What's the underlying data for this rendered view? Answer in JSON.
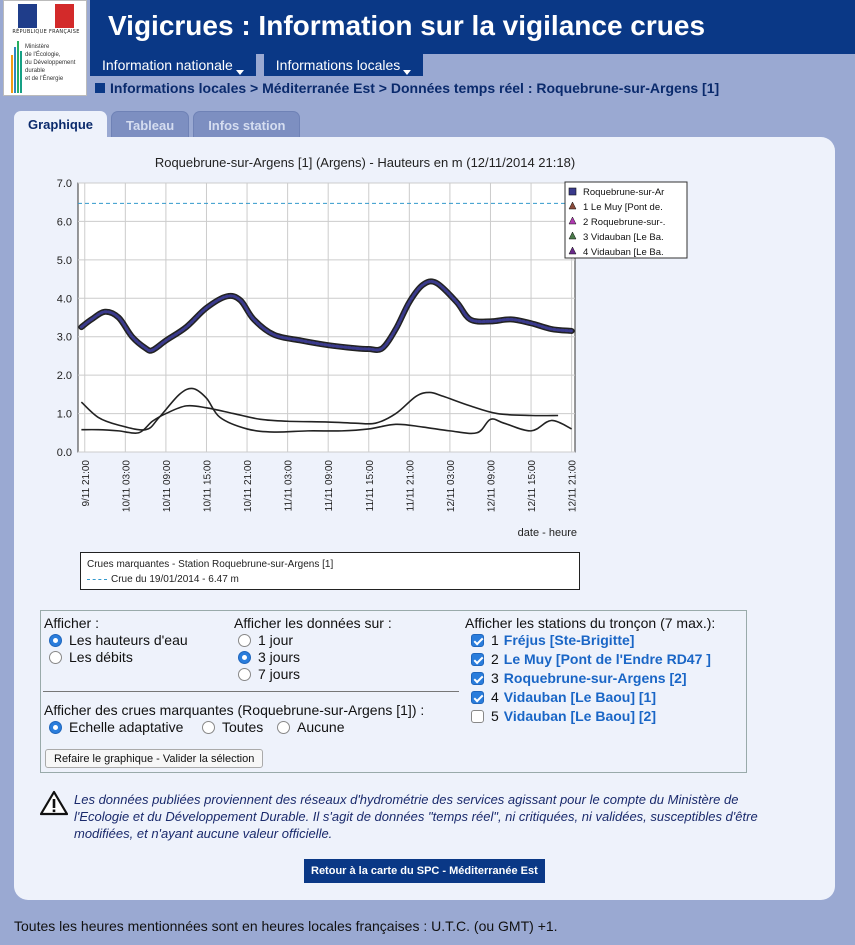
{
  "logo": {
    "republique": "RÉPUBLIQUE FRANÇAISE",
    "ministere_lines": [
      "Ministère",
      "de l'Écologie,",
      "du Développement",
      "durable",
      "et de l'Énergie"
    ]
  },
  "header": {
    "title": "Vigicrues : Information sur la vigilance crues"
  },
  "nav": {
    "items": [
      {
        "label": "Information nationale"
      },
      {
        "label": "Informations locales"
      }
    ]
  },
  "breadcrumb": "Informations locales > Méditerranée Est > Données temps réel : Roquebrune-sur-Argens [1]",
  "tabs": [
    {
      "label": "Graphique",
      "active": true
    },
    {
      "label": "Tableau",
      "active": false
    },
    {
      "label": "Infos station",
      "active": false
    }
  ],
  "chart_data": {
    "type": "line",
    "title": "Roquebrune-sur-Argens [1] (Argens) - Hauteurs en m (12/11/2014 21:18)",
    "xlabel": "date - heure",
    "ylabel": "",
    "ylim": [
      0,
      7
    ],
    "yticks": [
      "0.0",
      "1.0",
      "2.0",
      "3.0",
      "4.0",
      "5.0",
      "6.0",
      "7.0"
    ],
    "xticks": [
      "9/11 21:00",
      "10/11 03:00",
      "10/11 09:00",
      "10/11 15:00",
      "10/11 21:00",
      "11/11 03:00",
      "11/11 09:00",
      "11/11 15:00",
      "11/11 21:00",
      "12/11 03:00",
      "12/11 09:00",
      "12/11 15:00",
      "12/11 21:00"
    ],
    "x_hours_from_first_tick": [
      0,
      6,
      12,
      18,
      24,
      30,
      36,
      42,
      48,
      54,
      60,
      66,
      72
    ],
    "grid": true,
    "legend_position": "top-right",
    "threshold": {
      "label": "Crue du 19/01/2014 - 6.47 m",
      "value": 6.47,
      "color": "#3399cc"
    },
    "series": [
      {
        "name": "Roquebrune-sur-Ar",
        "color": "#3a3a8c",
        "marker": true,
        "points": [
          [
            -0.5,
            3.25
          ],
          [
            1,
            3.45
          ],
          [
            3,
            3.65
          ],
          [
            5,
            3.5
          ],
          [
            7,
            3.0
          ],
          [
            9,
            2.7
          ],
          [
            10,
            2.65
          ],
          [
            12,
            2.9
          ],
          [
            15,
            3.25
          ],
          [
            18,
            3.75
          ],
          [
            21,
            4.05
          ],
          [
            23,
            3.95
          ],
          [
            25,
            3.45
          ],
          [
            28,
            3.05
          ],
          [
            32,
            2.9
          ],
          [
            36,
            2.78
          ],
          [
            40,
            2.7
          ],
          [
            42,
            2.68
          ],
          [
            44,
            2.7
          ],
          [
            46,
            3.2
          ],
          [
            48,
            3.9
          ],
          [
            50,
            4.35
          ],
          [
            52,
            4.4
          ],
          [
            55,
            3.9
          ],
          [
            57,
            3.45
          ],
          [
            60,
            3.4
          ],
          [
            63,
            3.45
          ],
          [
            66,
            3.35
          ],
          [
            69,
            3.2
          ],
          [
            72,
            3.15
          ]
        ]
      },
      {
        "name": "1 Le Muy [Pont de.",
        "color": "#222222",
        "marker": false,
        "points": [
          [
            -0.5,
            0.58
          ],
          [
            2,
            0.58
          ],
          [
            5,
            0.55
          ],
          [
            8,
            0.5
          ],
          [
            10,
            0.8
          ],
          [
            12,
            1.0
          ],
          [
            15,
            1.2
          ],
          [
            18,
            1.15
          ],
          [
            22,
            1.0
          ],
          [
            26,
            0.85
          ],
          [
            30,
            0.8
          ],
          [
            36,
            0.78
          ],
          [
            40,
            0.75
          ],
          [
            43,
            0.75
          ],
          [
            46,
            1.0
          ],
          [
            49,
            1.45
          ],
          [
            51,
            1.55
          ],
          [
            53,
            1.45
          ],
          [
            57,
            1.2
          ],
          [
            61,
            1.0
          ],
          [
            66,
            0.95
          ],
          [
            70,
            0.95
          ]
        ]
      },
      {
        "name": "2 Roquebrune-sur-.",
        "color": "#222222",
        "marker": false,
        "points": [
          [
            -0.5,
            1.3
          ],
          [
            2,
            0.9
          ],
          [
            5,
            0.7
          ],
          [
            9,
            0.58
          ],
          [
            11,
            0.9
          ],
          [
            14,
            1.5
          ],
          [
            16,
            1.65
          ],
          [
            18,
            1.4
          ],
          [
            20,
            0.9
          ],
          [
            24,
            0.6
          ],
          [
            28,
            0.52
          ],
          [
            33,
            0.55
          ],
          [
            38,
            0.55
          ],
          [
            42,
            0.6
          ],
          [
            46,
            0.72
          ],
          [
            50,
            0.65
          ],
          [
            54,
            0.55
          ],
          [
            58,
            0.5
          ],
          [
            60,
            0.85
          ],
          [
            62,
            0.75
          ],
          [
            66,
            0.55
          ],
          [
            69,
            0.82
          ],
          [
            72,
            0.6
          ]
        ]
      },
      {
        "name": "3 Vidauban [Le Ba.",
        "color": "#222222",
        "marker": false,
        "points": []
      },
      {
        "name": "4 Vidauban [Le Ba.",
        "color": "#222222",
        "marker": false,
        "points": []
      }
    ]
  },
  "marquantes": {
    "title": "Crues marquantes - Station Roquebrune-sur-Argens [1]",
    "item": "Crue du 19/01/2014 - 6.47 m"
  },
  "form": {
    "afficher_label": "Afficher :",
    "afficher_options": [
      {
        "label": "Les hauteurs d'eau",
        "selected": true
      },
      {
        "label": "Les débits",
        "selected": false
      }
    ],
    "periode_label": "Afficher les données sur :",
    "periode_options": [
      {
        "label": "1 jour",
        "selected": false
      },
      {
        "label": "3 jours",
        "selected": true
      },
      {
        "label": "7 jours",
        "selected": false
      }
    ],
    "crues_label": "Afficher des crues marquantes (Roquebrune-sur-Argens [1]) :",
    "crues_options": [
      {
        "label": "Echelle adaptative",
        "selected": true
      },
      {
        "label": "Toutes",
        "selected": false
      },
      {
        "label": "Aucune",
        "selected": false
      }
    ],
    "stations_label": "Afficher les stations du tronçon (7 max.):",
    "stations": [
      {
        "num": "1",
        "name": "Fréjus [Ste-Brigitte]",
        "checked": true
      },
      {
        "num": "2",
        "name": "Le Muy [Pont de l'Endre RD47 ]",
        "checked": true
      },
      {
        "num": "3",
        "name": "Roquebrune-sur-Argens [2]",
        "checked": true
      },
      {
        "num": "4",
        "name": "Vidauban [Le Baou] [1]",
        "checked": true
      },
      {
        "num": "5",
        "name": "Vidauban [Le Baou] [2]",
        "checked": false
      }
    ],
    "refaire_button": "Refaire le graphique - Valider la sélection"
  },
  "warning": "Les données publiées proviennent des réseaux d'hydrométrie des services agissant pour le compte du Ministère de l'Ecologie et du Développement Durable. Il s'agit de données \"temps réel\", ni critiquées, ni validées, susceptibles d'être modifiées, et n'ayant aucune valeur officielle.",
  "retour_button": "Retour à la carte du SPC - Méditerranée Est",
  "footer_note": "Toutes les heures mentionnées sont en heures locales françaises : U.T.C. (ou GMT) +1.",
  "colors": {
    "page_bg": "#9aa9d2",
    "header_blue": "#0a3886",
    "panel_bg": "#eef2fb",
    "link_blue": "#1a66c6"
  }
}
